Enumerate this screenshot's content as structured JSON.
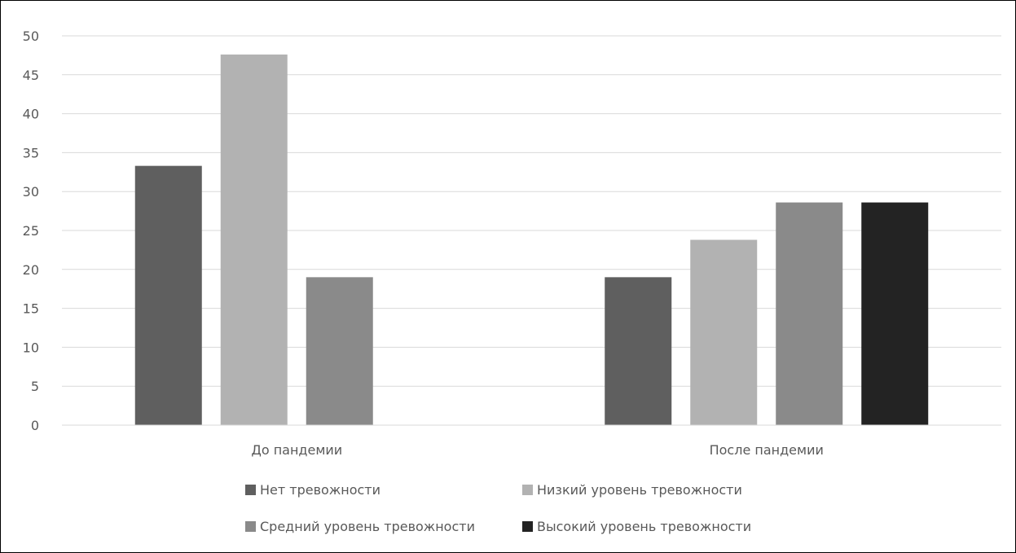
{
  "chart_data": {
    "type": "bar",
    "categories": [
      "До пандемии",
      "После пандемии"
    ],
    "ylim": [
      0,
      50
    ],
    "ytick_step": 5,
    "grid": true,
    "legend_position": "bottom",
    "series": [
      {
        "name": "Нет тревожности",
        "color": "#5f5f5f",
        "values": [
          33.3,
          19.0
        ]
      },
      {
        "name": "Низкий уровень тревожности",
        "color": "#b2b2b2",
        "values": [
          47.6,
          23.8
        ]
      },
      {
        "name": "Средний уровень тревожности",
        "color": "#8a8a8a",
        "values": [
          19.0,
          28.6
        ]
      },
      {
        "name": "Высокий уровень тревожности",
        "color": "#232323",
        "values": [
          0,
          28.6
        ]
      }
    ]
  }
}
